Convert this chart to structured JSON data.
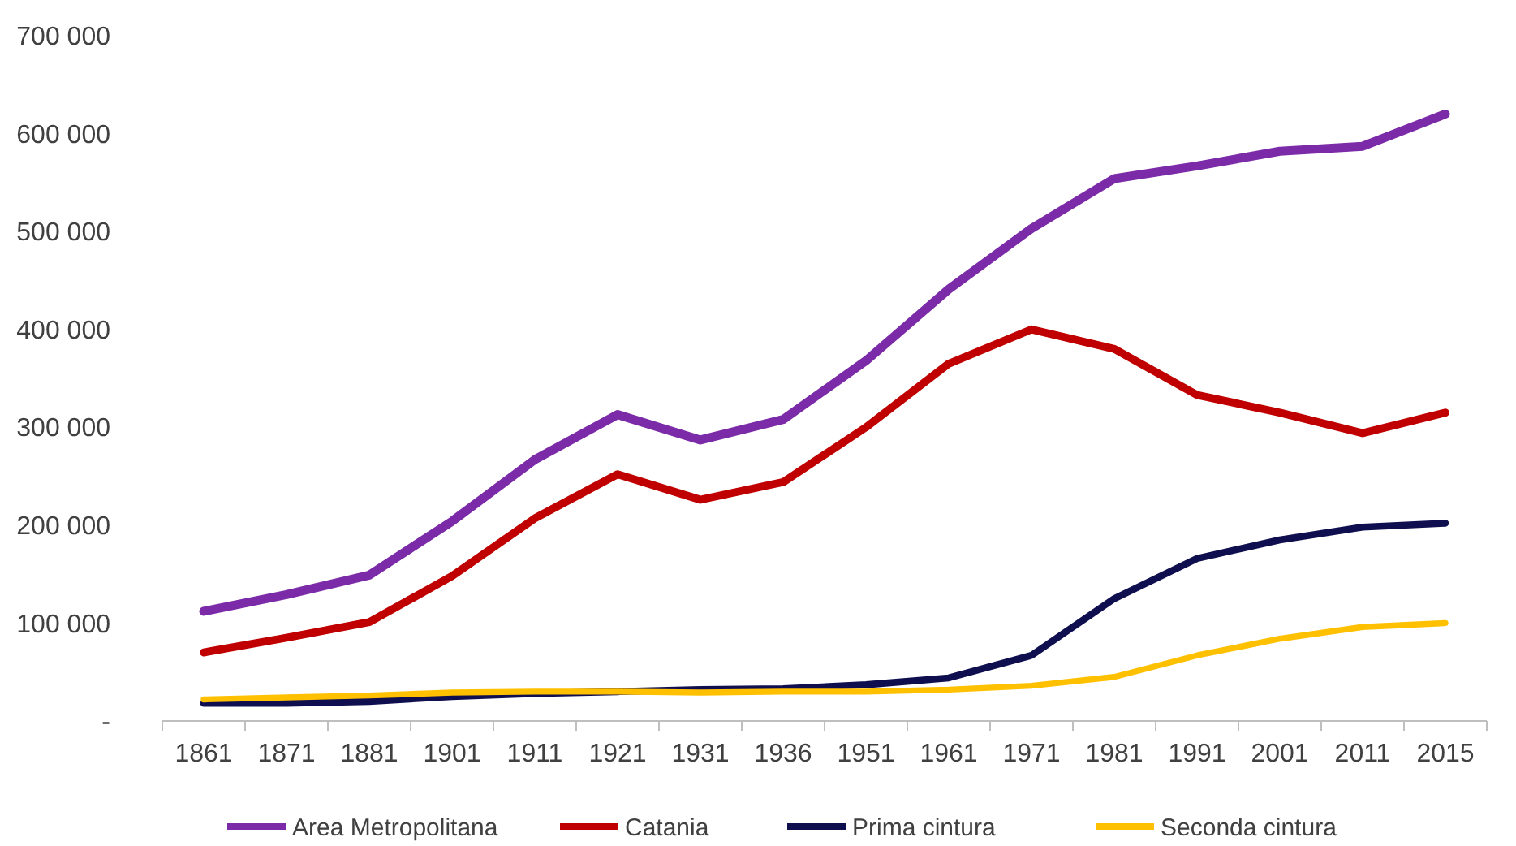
{
  "chart_data": {
    "type": "line",
    "categories": [
      "1861",
      "1871",
      "1881",
      "1901",
      "1911",
      "1921",
      "1931",
      "1936",
      "1951",
      "1961",
      "1971",
      "1981",
      "1991",
      "2001",
      "2011",
      "2015"
    ],
    "ylim": [
      0,
      700000
    ],
    "yticks": [
      {
        "value": 0,
        "label": "-"
      },
      {
        "value": 100000,
        "label": "100 000"
      },
      {
        "value": 200000,
        "label": "200 000"
      },
      {
        "value": 300000,
        "label": "300 000"
      },
      {
        "value": 400000,
        "label": "400 000"
      },
      {
        "value": 500000,
        "label": "500 000"
      },
      {
        "value": 600000,
        "label": "600 000"
      },
      {
        "value": 700000,
        "label": "700 000"
      }
    ],
    "grid": false,
    "legend": "bottom",
    "marker": "none",
    "line_style": "solid",
    "series": [
      {
        "name": "Area Metropolitana",
        "color": "#7b2aa8",
        "values": [
          112000,
          129000,
          149000,
          204000,
          267000,
          313000,
          287000,
          308000,
          368000,
          441000,
          503000,
          554000,
          567000,
          582000,
          587000,
          620000
        ]
      },
      {
        "name": "Catania",
        "color": "#c00000",
        "values": [
          70000,
          85000,
          101000,
          148000,
          207000,
          252000,
          226000,
          244000,
          300000,
          365000,
          400000,
          380000,
          333000,
          315000,
          294000,
          315000
        ]
      },
      {
        "name": "Prima cintura",
        "color": "#0f0f4f",
        "values": [
          18000,
          18000,
          20000,
          25000,
          28000,
          30000,
          32000,
          33000,
          37000,
          44000,
          67000,
          125000,
          166000,
          185000,
          198000,
          202000
        ]
      },
      {
        "name": "Seconda cintura",
        "color": "#ffc000",
        "values": [
          22000,
          24000,
          26000,
          29000,
          30000,
          30000,
          29000,
          30000,
          30000,
          32000,
          36000,
          45000,
          67000,
          84000,
          96000,
          100000
        ]
      }
    ]
  }
}
